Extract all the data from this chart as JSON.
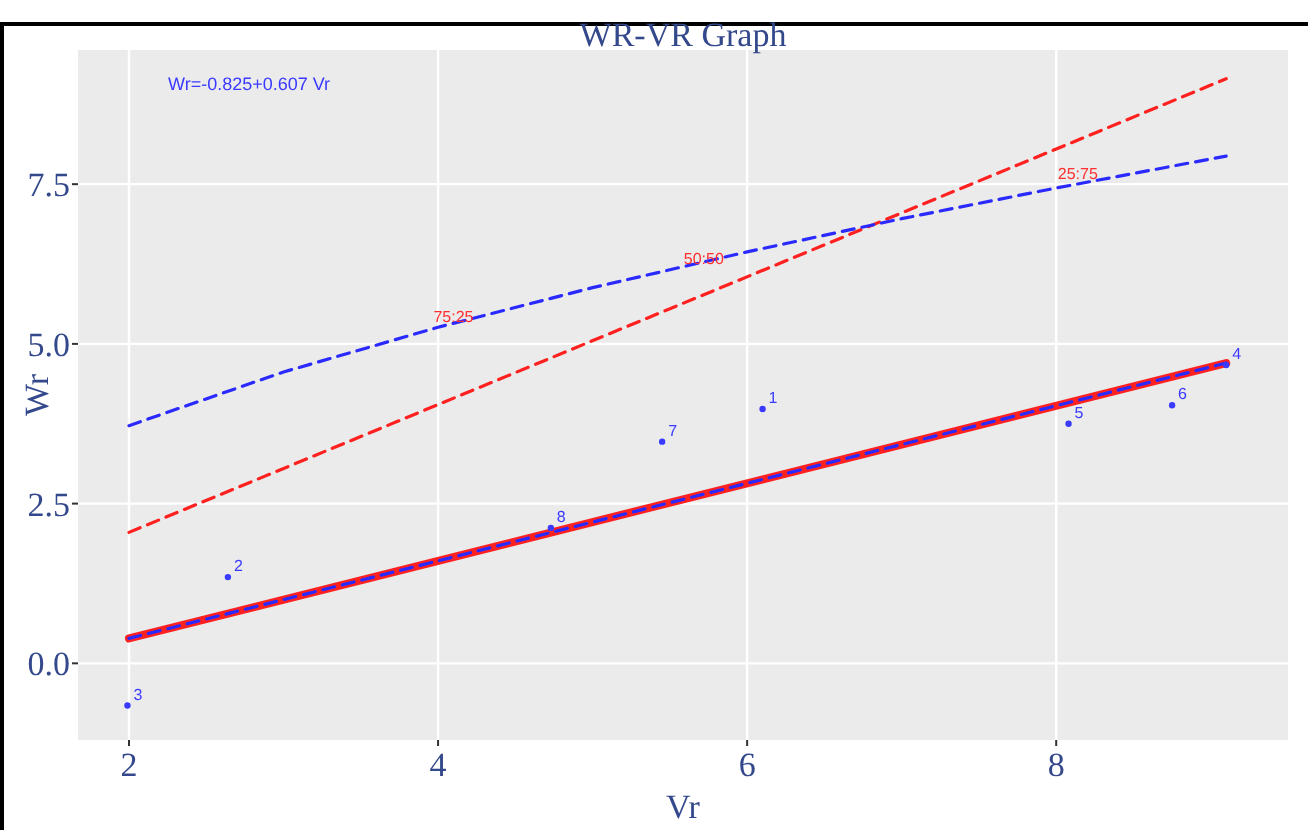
{
  "chart_data": {
    "type": "line",
    "title": "WR-VR Graph",
    "xlabel": "Vr",
    "ylabel": "Wr",
    "xlim": [
      1.67,
      9.5
    ],
    "ylim": [
      -1.2,
      9.6
    ],
    "xticks": [
      2,
      4,
      6,
      8
    ],
    "yticks": [
      {
        "value": 0,
        "label": "0.0"
      },
      2.5,
      {
        "value": 5,
        "label": "5.0"
      },
      7.5
    ],
    "grid": true,
    "annotations": [
      "Wr=-0.825+0.607 Vr",
      {
        "text": "75:25",
        "x": 4.1,
        "y": 5.3
      },
      {
        "text": "50:50",
        "x": 5.72,
        "y": 6.22
      },
      {
        "text": "25:75",
        "x": 8.14,
        "y": 7.54
      }
    ],
    "series": [
      {
        "color": "#ff2020",
        "line_style": "dashed",
        "x": [
          2,
          9.1
        ],
        "values": [
          2.05,
          9.15
        ]
      },
      {
        "color": "#2a2aff",
        "line_style": "dashed",
        "x": [
          2,
          3,
          4,
          5,
          6,
          7,
          8,
          9.1
        ],
        "values": [
          3.72,
          4.56,
          5.26,
          5.88,
          6.44,
          6.96,
          7.44,
          7.94
        ]
      },
      {
        "color": "#ff2020",
        "line_style": "solid",
        "x": [
          2,
          9.1
        ],
        "values": [
          0.39,
          4.7
        ]
      },
      {
        "color": "#2a2aff",
        "line_style": "dashed",
        "x": [
          2,
          9.1
        ],
        "values": [
          0.39,
          4.7
        ]
      },
      {
        "type": "scatter",
        "name": "1",
        "color": "#3a3aff",
        "marker": "circle",
        "x": [
          6.1
        ],
        "values": [
          3.98
        ]
      },
      {
        "type": "scatter",
        "name": "2",
        "color": "#3a3aff",
        "marker": "circle",
        "x": [
          2.64
        ],
        "values": [
          1.35
        ]
      },
      {
        "type": "scatter",
        "name": "3",
        "color": "#3a3aff",
        "marker": "circle",
        "x": [
          1.99
        ],
        "values": [
          -0.66
        ]
      },
      {
        "type": "scatter",
        "name": "4",
        "color": "#3a3aff",
        "marker": "circle",
        "x": [
          9.1
        ],
        "values": [
          4.67
        ]
      },
      {
        "type": "scatter",
        "name": "5",
        "color": "#3a3aff",
        "marker": "circle",
        "x": [
          8.08
        ],
        "values": [
          3.75
        ]
      },
      {
        "type": "scatter",
        "name": "6",
        "color": "#3a3aff",
        "marker": "circle",
        "x": [
          8.75
        ],
        "values": [
          4.04
        ]
      },
      {
        "type": "scatter",
        "name": "7",
        "color": "#3a3aff",
        "marker": "circle",
        "x": [
          5.45
        ],
        "values": [
          3.47
        ]
      },
      {
        "type": "scatter",
        "name": "8",
        "color": "#3a3aff",
        "marker": "circle",
        "x": [
          4.73
        ],
        "values": [
          2.12
        ]
      }
    ]
  }
}
